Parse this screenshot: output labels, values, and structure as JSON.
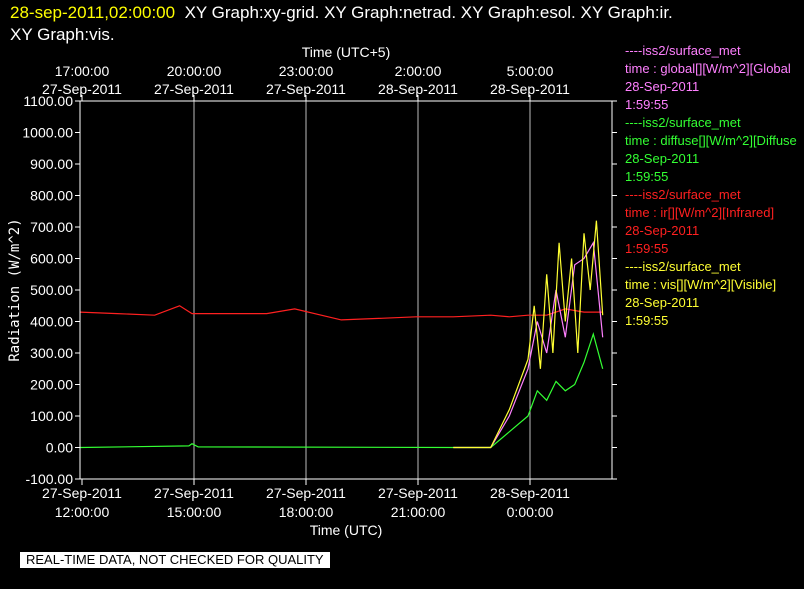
{
  "header": {
    "timestamp": "28-sep-2011,02:00:00",
    "titles": "XY Graph:xy-grid.  XY Graph:netrad.  XY Graph:esol.  XY Graph:ir.",
    "titles_line2": "XY Graph:vis."
  },
  "legend": [
    {
      "source": "----iss2/surface_met",
      "var": "time : global[][W/m^2][Global",
      "date": "28-Sep-2011",
      "time": "1:59:55",
      "color": "#ff80ff"
    },
    {
      "source": "----iss2/surface_met",
      "var": "time : diffuse[][W/m^2][Diffuse",
      "date": "28-Sep-2011",
      "time": "1:59:55",
      "color": "#33ff33"
    },
    {
      "source": "----iss2/surface_met",
      "var": "time : ir[][W/m^2][Infrared]",
      "date": "28-Sep-2011",
      "time": "1:59:55",
      "color": "#ff2020"
    },
    {
      "source": "----iss2/surface_met",
      "var": "time : vis[][W/m^2][Visible]",
      "date": "28-Sep-2011",
      "time": "1:59:55",
      "color": "#ffff33"
    }
  ],
  "disclaimer": "REAL-TIME DATA, NOT CHECKED FOR QUALITY",
  "chart_data": {
    "type": "line",
    "xlabel": "Time (UTC)",
    "x2label": "Time (UTC+5)",
    "ylabel": "Radiation (W/m^2)",
    "ylim": [
      -100,
      1100
    ],
    "xlim": [
      "2011-09-27 12:00",
      "2011-09-28 02:00"
    ],
    "grid": "vertical",
    "yticks": [
      "1100.00",
      "1000.00",
      "900.00",
      "800.00",
      "700.00",
      "600.00",
      "500.00",
      "400.00",
      "300.00",
      "200.00",
      "100.00",
      "0.00",
      "-100.00"
    ],
    "xticks_bottom": [
      {
        "date": "27-Sep-2011",
        "time": "12:00:00"
      },
      {
        "date": "27-Sep-2011",
        "time": "15:00:00"
      },
      {
        "date": "27-Sep-2011",
        "time": "18:00:00"
      },
      {
        "date": "27-Sep-2011",
        "time": "21:00:00"
      },
      {
        "date": "28-Sep-2011",
        "time": "0:00:00"
      }
    ],
    "xticks_top": [
      {
        "time": "17:00:00",
        "date": "27-Sep-2011"
      },
      {
        "time": "20:00:00",
        "date": "27-Sep-2011"
      },
      {
        "time": "23:00:00",
        "date": "27-Sep-2011"
      },
      {
        "time": "2:00:00",
        "date": "28-Sep-2011"
      },
      {
        "time": "5:00:00",
        "date": "28-Sep-2011"
      }
    ],
    "series": [
      {
        "name": "ir",
        "color": "#ff2020",
        "x": [
          "2011-09-27 12:00",
          "2011-09-27 13:00",
          "2011-09-27 14:00",
          "2011-09-27 14:40",
          "2011-09-27 15:00",
          "2011-09-27 16:00",
          "2011-09-27 17:00",
          "2011-09-27 17:45",
          "2011-09-27 19:00",
          "2011-09-27 20:00",
          "2011-09-27 21:00",
          "2011-09-27 22:00",
          "2011-09-27 23:00",
          "2011-09-27 23:30",
          "2011-09-28 00:00",
          "2011-09-28 00:30",
          "2011-09-28 01:00",
          "2011-09-28 01:30",
          "2011-09-28 02:00"
        ],
        "y": [
          430,
          425,
          420,
          450,
          425,
          425,
          425,
          440,
          405,
          410,
          415,
          415,
          420,
          415,
          420,
          420,
          440,
          430,
          430
        ]
      },
      {
        "name": "diffuse",
        "color": "#33ff33",
        "x": [
          "2011-09-27 12:00",
          "2011-09-27 14:55",
          "2011-09-27 15:00",
          "2011-09-27 15:10",
          "2011-09-27 22:00",
          "2011-09-27 23:00",
          "2011-09-27 23:30",
          "2011-09-28 00:00",
          "2011-09-28 00:15",
          "2011-09-28 00:30",
          "2011-09-28 00:45",
          "2011-09-28 01:00",
          "2011-09-28 01:15",
          "2011-09-28 01:30",
          "2011-09-28 01:45",
          "2011-09-28 02:00"
        ],
        "y": [
          0,
          5,
          12,
          2,
          0,
          0,
          50,
          100,
          180,
          150,
          210,
          180,
          200,
          270,
          360,
          250
        ]
      },
      {
        "name": "global",
        "color": "#ff80ff",
        "x": [
          "2011-09-27 22:00",
          "2011-09-27 23:00",
          "2011-09-27 23:30",
          "2011-09-28 00:00",
          "2011-09-28 00:15",
          "2011-09-28 00:30",
          "2011-09-28 00:45",
          "2011-09-28 01:00",
          "2011-09-28 01:15",
          "2011-09-28 01:30",
          "2011-09-28 01:45",
          "2011-09-28 02:00"
        ],
        "y": [
          0,
          0,
          100,
          250,
          400,
          300,
          500,
          350,
          580,
          600,
          650,
          350
        ]
      },
      {
        "name": "vis",
        "color": "#ffff33",
        "x": [
          "2011-09-27 22:00",
          "2011-09-27 23:00",
          "2011-09-27 23:30",
          "2011-09-28 00:00",
          "2011-09-28 00:10",
          "2011-09-28 00:20",
          "2011-09-28 00:30",
          "2011-09-28 00:40",
          "2011-09-28 00:50",
          "2011-09-28 01:00",
          "2011-09-28 01:10",
          "2011-09-28 01:20",
          "2011-09-28 01:30",
          "2011-09-28 01:40",
          "2011-09-28 01:50",
          "2011-09-28 02:00"
        ],
        "y": [
          0,
          0,
          120,
          280,
          450,
          250,
          550,
          300,
          650,
          400,
          600,
          300,
          680,
          500,
          720,
          420
        ]
      }
    ]
  }
}
